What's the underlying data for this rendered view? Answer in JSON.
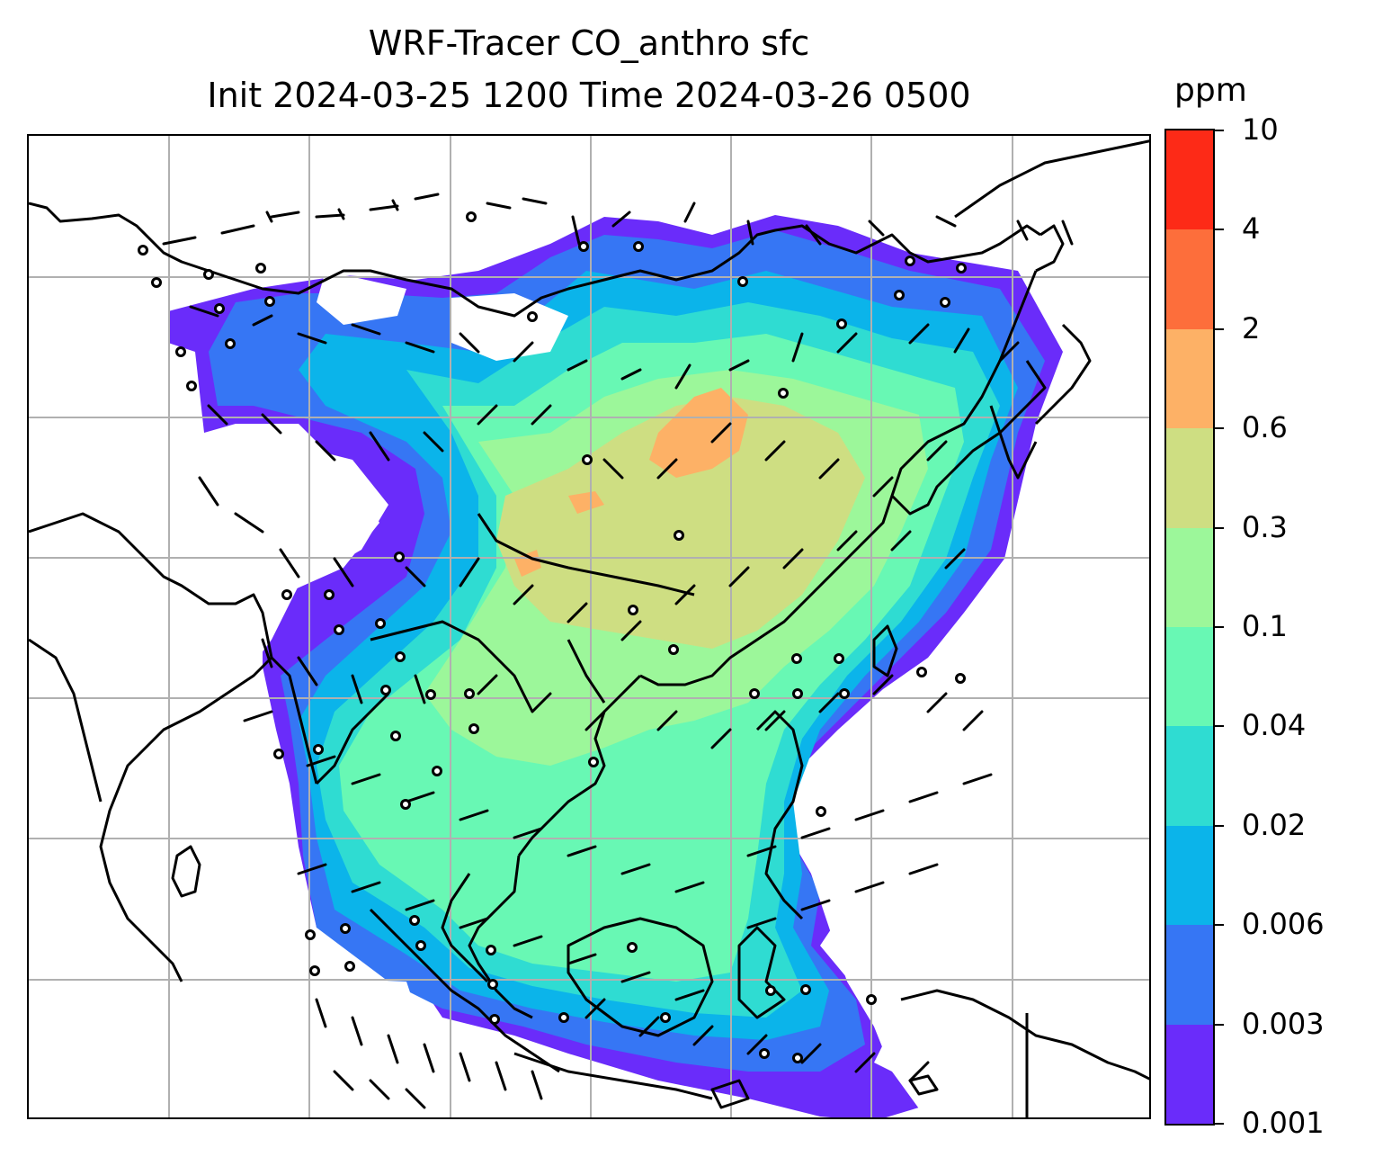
{
  "title": {
    "line1": "WRF-Tracer CO_anthro sfc",
    "line2": "Init 2024-03-25 1200 Time 2024-03-26 0500"
  },
  "colorbar": {
    "unit": "ppm",
    "ticks": [
      "0.001",
      "0.003",
      "0.006",
      "0.02",
      "0.04",
      "0.1",
      "0.3",
      "0.6",
      "2",
      "4",
      "10"
    ],
    "colors": [
      "#6a2cfa",
      "#3676f4",
      "#0bb4ea",
      "#2fdcd2",
      "#68f8b4",
      "#9cf79a",
      "#cede82",
      "#fdb166",
      "#fd6e3b",
      "#fd2a17"
    ]
  },
  "map": {
    "gridlines": true,
    "gridline_color": "#b0b0b0",
    "coastline_color": "#000000",
    "wind_barb_color": "#000000",
    "contents": [
      "CO_anthro concentration field",
      "wind barbs",
      "coastlines",
      "country borders"
    ]
  }
}
